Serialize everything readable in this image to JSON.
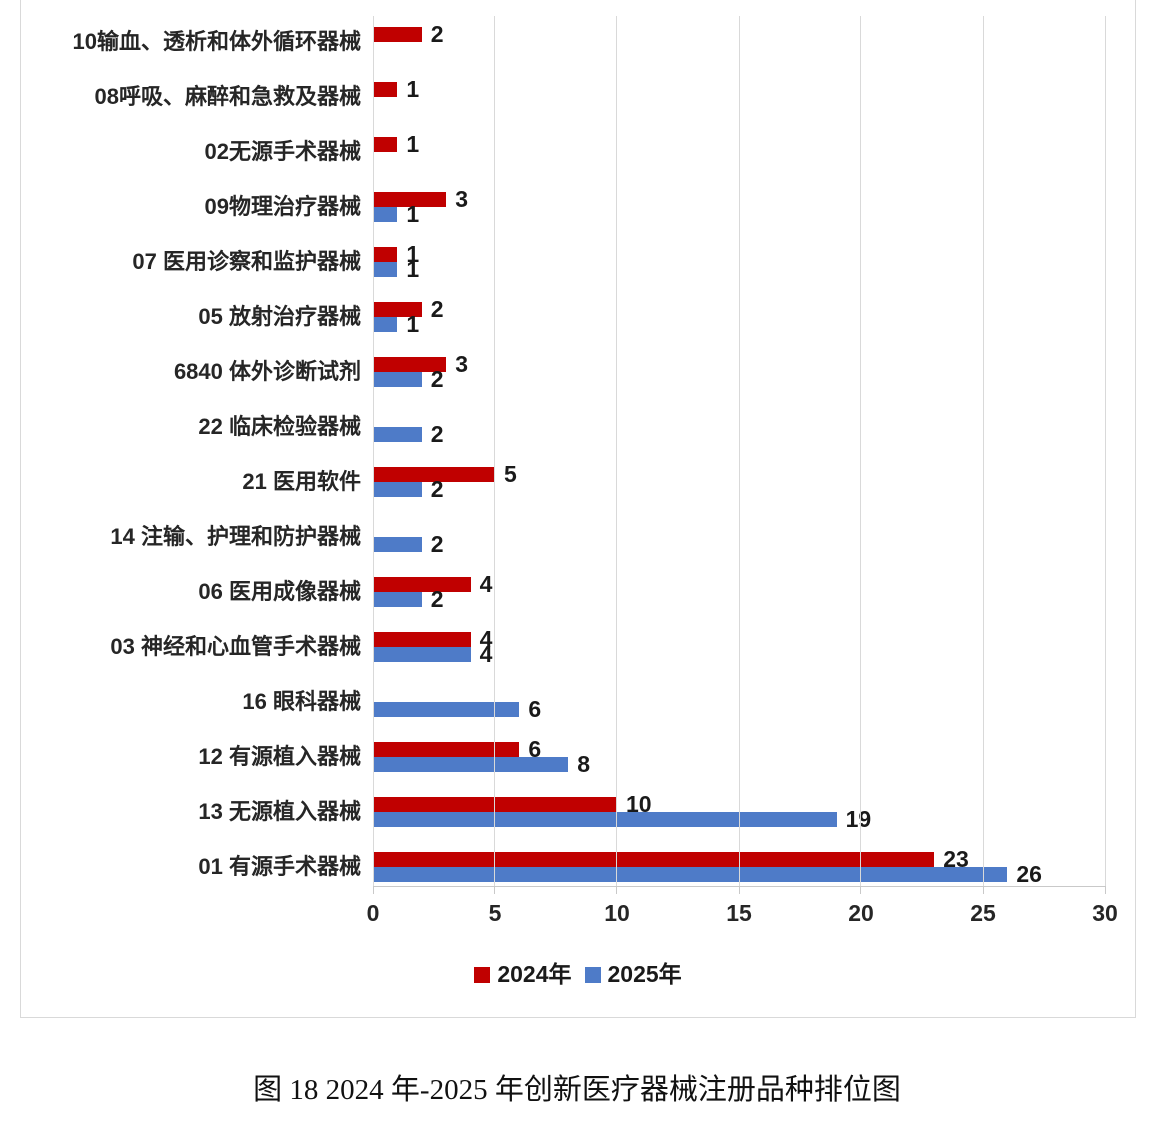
{
  "page": {
    "caption": "图 18 2024 年-2025 年创新医疗器械注册品种排位图"
  },
  "chart_data": {
    "type": "bar",
    "orientation": "horizontal",
    "title": "",
    "xlabel": "",
    "ylabel": "",
    "categories": [
      "10输血、透析和体外循环器械",
      "08呼吸、麻醉和急救及器械",
      "02无源手术器械",
      "09物理治疗器械",
      "07 医用诊察和监护器械",
      "05 放射治疗器械",
      "6840 体外诊断试剂",
      "22 临床检验器械",
      "21 医用软件",
      "14 注输、护理和防护器械",
      "06 医用成像器械",
      "03 神经和心血管手术器械",
      "16 眼科器械",
      "12 有源植入器械",
      "13 无源植入器械",
      "01 有源手术器械"
    ],
    "series": [
      {
        "name": "2024年",
        "color": "#C00000",
        "values": [
          2,
          1,
          1,
          3,
          1,
          2,
          3,
          null,
          5,
          null,
          4,
          4,
          null,
          6,
          10,
          23
        ]
      },
      {
        "name": "2025年",
        "color": "#4E7BC8",
        "values": [
          null,
          null,
          null,
          1,
          1,
          1,
          2,
          2,
          2,
          2,
          2,
          4,
          6,
          8,
          19,
          26
        ]
      }
    ],
    "x_axis": {
      "min": 0,
      "max": 30,
      "ticks": [
        0,
        5,
        10,
        15,
        20,
        25,
        30
      ]
    },
    "legend_position": "bottom",
    "gridlines": true
  }
}
